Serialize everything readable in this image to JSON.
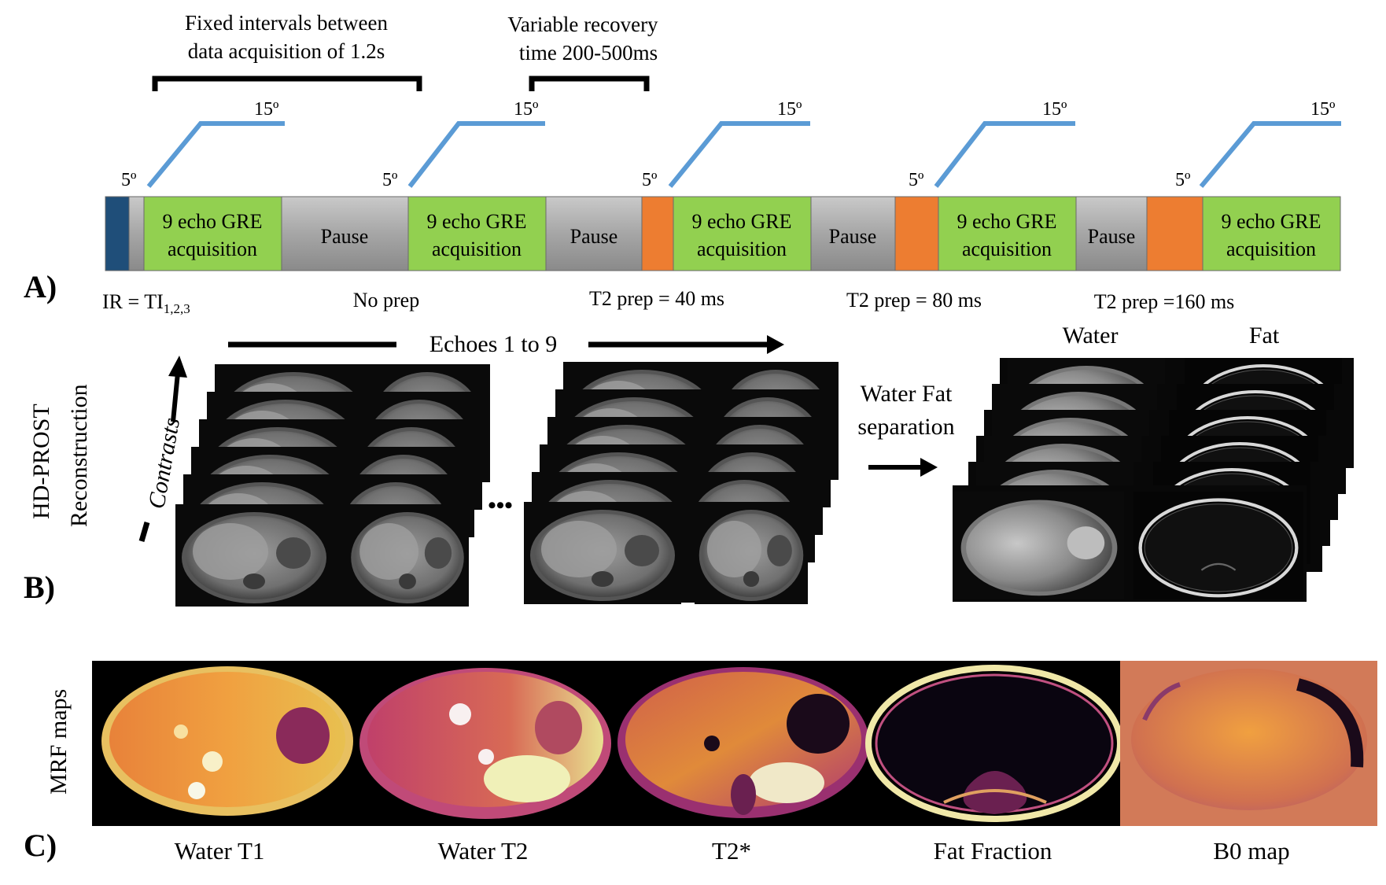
{
  "panels": {
    "a": "A)",
    "b": "B)",
    "c": "C)"
  },
  "annotations": {
    "fixed_line1": "Fixed intervals between",
    "fixed_line2": "data acquisition of 1.2s",
    "variable_line1": "Variable recovery",
    "variable_line2": "time 200-500ms"
  },
  "angles": {
    "low": "5º",
    "high": "15º"
  },
  "sequence": {
    "acq_line1": "9 echo GRE",
    "acq_line2": "acquisition",
    "pause": "Pause"
  },
  "preps": {
    "ir_text": "IR = TI",
    "ir_sub": "1,2,3",
    "no_prep": "No prep",
    "t2_40": "T2 prep = 40 ms",
    "t2_80": "T2 prep = 80 ms",
    "t2_160": "T2 prep =160 ms"
  },
  "recon": {
    "line1": "HD-PROST",
    "line2": "Reconstruction",
    "echoes": "Echoes 1 to 9",
    "contrasts": "Contrasts",
    "ellipsis": "•••",
    "wf_line1": "Water Fat",
    "wf_line2": "separation",
    "water": "Water",
    "fat": "Fat"
  },
  "mrf": {
    "label": "MRF maps",
    "maps": [
      "Water T1",
      "Water T2",
      "T2*",
      "Fat Fraction",
      "B0 map"
    ]
  },
  "colors": {
    "acquisition": "#92d050",
    "pause": "#999999",
    "t2prep": "#ed7d31",
    "inversion": "#1f4e79",
    "flip_ramp": "#5b9bd5"
  }
}
